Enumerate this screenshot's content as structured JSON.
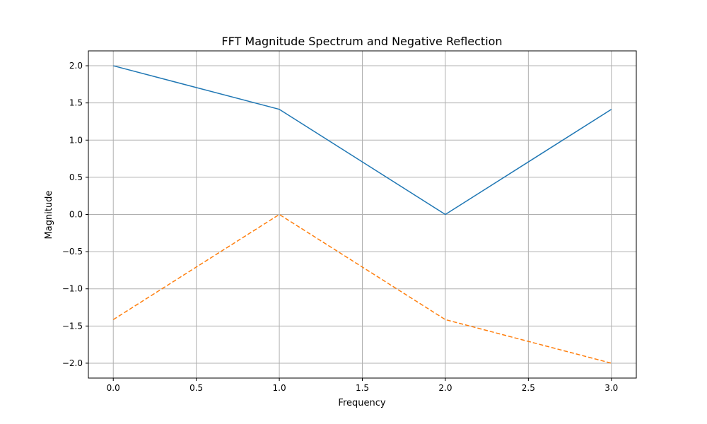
{
  "chart_data": {
    "type": "line",
    "title": "FFT Magnitude Spectrum and Negative Reflection",
    "xlabel": "Frequency",
    "ylabel": "Magnitude",
    "xlim": [
      -0.15,
      3.15
    ],
    "ylim": [
      -2.2,
      2.2
    ],
    "xticks": [
      0.0,
      0.5,
      1.0,
      1.5,
      2.0,
      2.5,
      3.0
    ],
    "xtick_labels": [
      "0.0",
      "0.5",
      "1.0",
      "1.5",
      "2.0",
      "2.5",
      "3.0"
    ],
    "yticks": [
      2.0,
      1.5,
      1.0,
      0.5,
      0.0,
      -0.5,
      -1.0,
      -1.5,
      -2.0
    ],
    "ytick_labels": [
      "2.0",
      "1.5",
      "1.0",
      "0.5",
      "0.0",
      "−0.5",
      "−1.0",
      "−1.5",
      "−2.0"
    ],
    "grid": true,
    "x": [
      0,
      1,
      2,
      3
    ],
    "series": [
      {
        "values": [
          2.0,
          1.414,
          0.0,
          1.414
        ],
        "color": "#1f77b4",
        "linestyle": "solid"
      },
      {
        "values": [
          -1.414,
          0.0,
          -1.414,
          -2.0
        ],
        "color": "#ff7f0e",
        "linestyle": "dashed"
      }
    ]
  }
}
